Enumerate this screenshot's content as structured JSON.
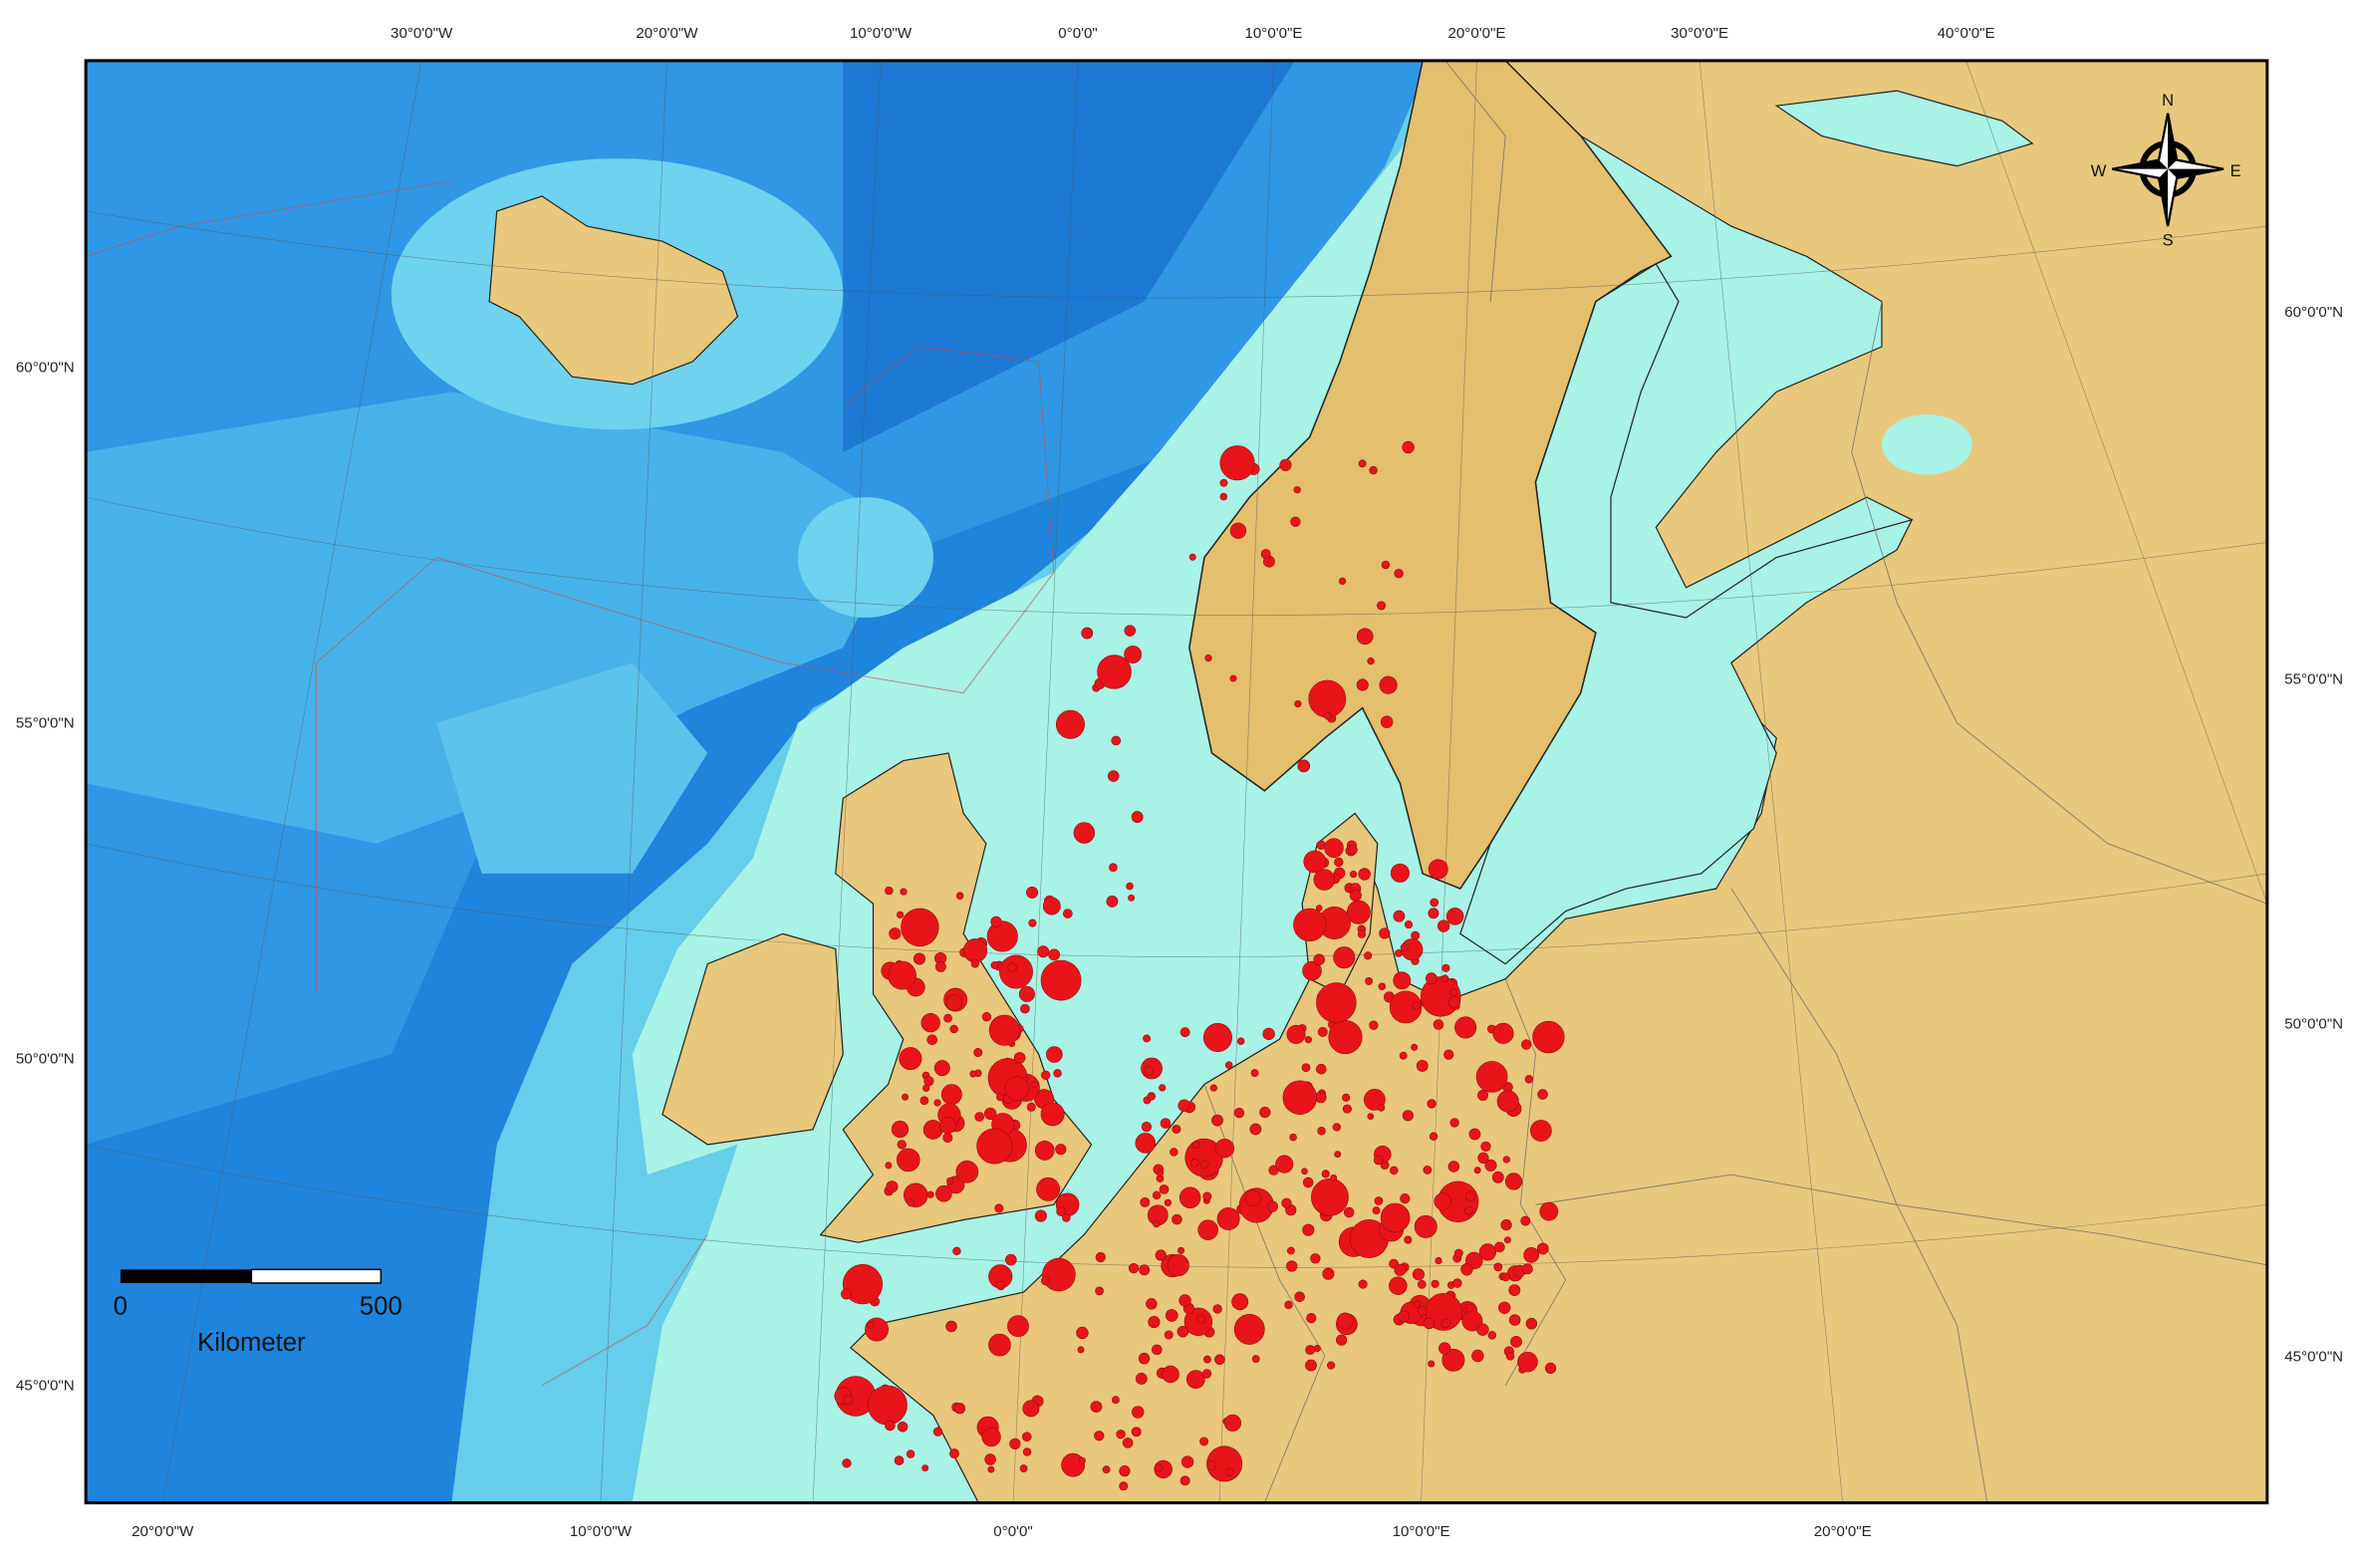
{
  "graticule": {
    "top": [
      "30°0'0\"W",
      "20°0'0\"W",
      "10°0'0\"W",
      "0°0'0\"",
      "10°0'0\"E",
      "20°0'0\"E",
      "30°0'0\"E",
      "40°0'0\"E"
    ],
    "bottom": [
      "20°0'0\"W",
      "10°0'0\"W",
      "0°0'0\"",
      "10°0'0\"E",
      "20°0'0\"E"
    ],
    "left": [
      "60°0'0\"N",
      "55°0'0\"N",
      "50°0'0\"N",
      "45°0'0\"N"
    ],
    "right": [
      "60°0'0\"N",
      "55°0'0\"N",
      "50°0'0\"N",
      "45°0'0\"N"
    ]
  },
  "scale_bar": {
    "labels": [
      "0",
      "500"
    ],
    "unit": "Kilometer"
  },
  "compass": {
    "north": "N",
    "south": "S",
    "east": "E",
    "west": "W"
  }
}
